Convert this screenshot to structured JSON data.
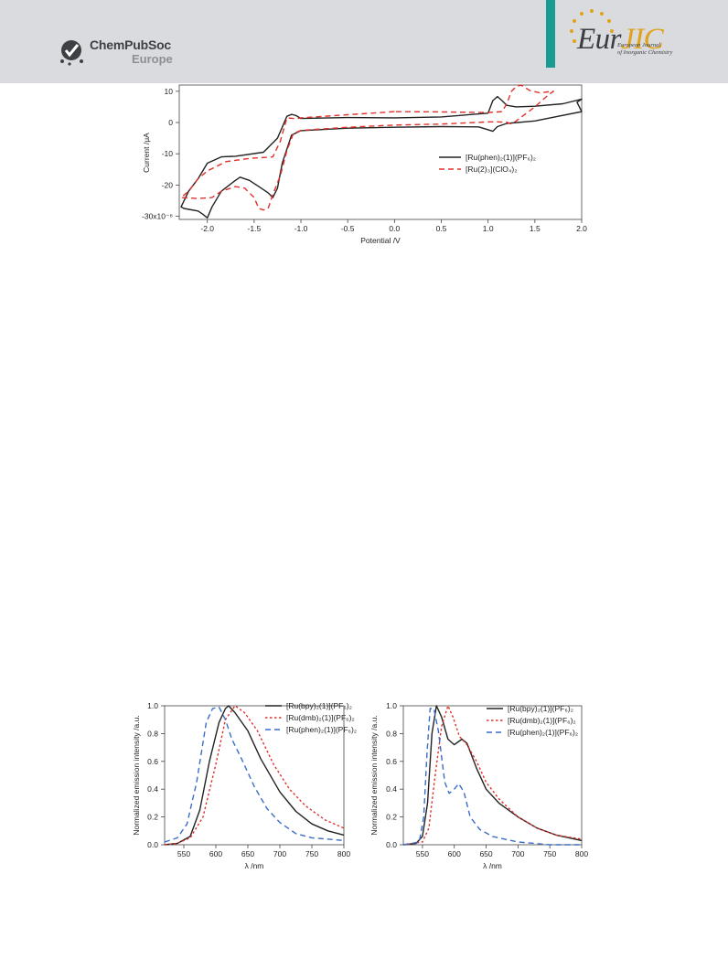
{
  "header": {
    "publisher_name": "ChemPubSoc",
    "publisher_region": "Europe",
    "journal_logo_left": "Eur",
    "journal_logo_right": "JIC",
    "journal_full_line1": "European Journal",
    "journal_full_line2": "of Inorganic Chemistry"
  },
  "colors": {
    "header_band": "#d9dbde",
    "teal_accent": "#1a9b92",
    "series_black": "#222222",
    "series_red": "#e0302a",
    "series_blue": "#3a6cc8",
    "star_gold": "#e2a21a"
  },
  "icons": [
    "chempubsoc-logo-icon",
    "eurjic-star-ring-icon"
  ],
  "chart_data": [
    {
      "type": "line",
      "xlabel": "Potential /V",
      "ylabel": "Current /μA",
      "xlim": [
        -2.3,
        2.0
      ],
      "ylim": [
        -31,
        12
      ],
      "xticks": [
        -2.0,
        -1.5,
        -1.0,
        -0.5,
        0.0,
        0.5,
        1.0,
        1.5,
        2.0
      ],
      "xtick_labels": [
        "-2.0",
        "-1.5",
        "-1.0",
        "-0.5",
        "0.0",
        "0.5",
        "1.0",
        "1.5",
        "2.0"
      ],
      "yticks": [
        10,
        0,
        -10,
        -20,
        -30
      ],
      "ytick_labels": [
        "10",
        "0",
        "-10",
        "-20",
        "-30x10⁻⁶"
      ],
      "grid": false,
      "legend_position": "right",
      "series": [
        {
          "name": "[Ru(phen)₂(1)](PF₆)₂",
          "style": "solid",
          "color": "#222222",
          "points": [
            [
              0.0,
              1.5
            ],
            [
              -0.5,
              1.6
            ],
            [
              -1.0,
              1.3
            ],
            [
              -1.05,
              2.2
            ],
            [
              -1.1,
              2.6
            ],
            [
              -1.15,
              2.0
            ],
            [
              -1.2,
              -1.5
            ],
            [
              -1.25,
              -5
            ],
            [
              -1.4,
              -9.5
            ],
            [
              -1.7,
              -10.8
            ],
            [
              -1.85,
              -11
            ],
            [
              -2.0,
              -13
            ],
            [
              -2.1,
              -18
            ],
            [
              -2.2,
              -22
            ],
            [
              -2.28,
              -27
            ],
            [
              -2.25,
              -27.5
            ],
            [
              -2.1,
              -28.3
            ],
            [
              -2.05,
              -29.3
            ],
            [
              -2.0,
              -30.5
            ],
            [
              -1.95,
              -27
            ],
            [
              -1.85,
              -22
            ],
            [
              -1.7,
              -18.5
            ],
            [
              -1.65,
              -17.5
            ],
            [
              -1.55,
              -18.5
            ],
            [
              -1.45,
              -20.5
            ],
            [
              -1.35,
              -22.5
            ],
            [
              -1.3,
              -24
            ],
            [
              -1.25,
              -21
            ],
            [
              -1.2,
              -13
            ],
            [
              -1.1,
              -4
            ],
            [
              -1.0,
              -2.6
            ],
            [
              -0.5,
              -1.8
            ],
            [
              0.0,
              -1.5
            ],
            [
              0.5,
              -1.3
            ],
            [
              0.9,
              -1.4
            ],
            [
              1.0,
              -2.3
            ],
            [
              1.05,
              -2.8
            ],
            [
              1.1,
              -1.3
            ],
            [
              1.2,
              -0.3
            ],
            [
              1.5,
              0.5
            ],
            [
              2.0,
              3.5
            ],
            [
              1.95,
              6.5
            ],
            [
              2.0,
              7.5
            ],
            [
              1.8,
              6
            ],
            [
              1.5,
              5.2
            ],
            [
              1.3,
              5
            ],
            [
              1.2,
              5.5
            ],
            [
              1.15,
              7
            ],
            [
              1.1,
              8.3
            ],
            [
              1.05,
              7
            ],
            [
              1.0,
              3
            ],
            [
              0.5,
              1.8
            ],
            [
              0.0,
              1.5
            ]
          ]
        },
        {
          "name": "[Ru(2)₃](ClO₄)₂",
          "style": "dashed",
          "color": "#e0302a",
          "points": [
            [
              0.0,
              3.5
            ],
            [
              -0.5,
              2.5
            ],
            [
              -1.0,
              1.5
            ],
            [
              -1.05,
              1.2
            ],
            [
              -1.15,
              1.5
            ],
            [
              -1.22,
              -6
            ],
            [
              -1.3,
              -11
            ],
            [
              -1.55,
              -11.5
            ],
            [
              -1.8,
              -12.5
            ],
            [
              -2.0,
              -15.5
            ],
            [
              -2.1,
              -18
            ],
            [
              -2.2,
              -22
            ],
            [
              -2.28,
              -24
            ],
            [
              -2.1,
              -24.3
            ],
            [
              -1.95,
              -24
            ],
            [
              -1.85,
              -22
            ],
            [
              -1.7,
              -20.5
            ],
            [
              -1.6,
              -21
            ],
            [
              -1.5,
              -24
            ],
            [
              -1.45,
              -27.5
            ],
            [
              -1.4,
              -28
            ],
            [
              -1.35,
              -27.5
            ],
            [
              -1.3,
              -23
            ],
            [
              -1.22,
              -17
            ],
            [
              -1.15,
              -9
            ],
            [
              -1.08,
              -3.5
            ],
            [
              -1.0,
              -2.5
            ],
            [
              -0.5,
              -1.5
            ],
            [
              0.0,
              -0.8
            ],
            [
              0.5,
              -0.5
            ],
            [
              1.0,
              0.2
            ],
            [
              1.1,
              0.2
            ],
            [
              1.2,
              0.1
            ],
            [
              1.25,
              -0.5
            ],
            [
              1.3,
              0.5
            ],
            [
              1.5,
              5
            ],
            [
              1.65,
              9
            ],
            [
              1.7,
              10
            ],
            [
              1.55,
              9.5
            ],
            [
              1.45,
              10.2
            ],
            [
              1.35,
              12
            ],
            [
              1.3,
              11.5
            ],
            [
              1.25,
              10
            ],
            [
              1.2,
              6
            ],
            [
              1.15,
              3.5
            ],
            [
              1.0,
              3.2
            ],
            [
              0.5,
              3.4
            ],
            [
              0.0,
              3.5
            ]
          ]
        }
      ]
    },
    {
      "type": "line",
      "xlabel": "λ /nm",
      "ylabel": "Normalized emission intensity /a.u.",
      "xlim": [
        520,
        800
      ],
      "ylim": [
        0,
        1.0
      ],
      "xticks": [
        550,
        600,
        650,
        700,
        750,
        800
      ],
      "xtick_labels": [
        "550",
        "600",
        "650",
        "700",
        "750",
        "800"
      ],
      "yticks": [
        0.0,
        0.2,
        0.4,
        0.6,
        0.8,
        1.0
      ],
      "ytick_labels": [
        "0.0",
        "0.2",
        "0.4",
        "0.6",
        "0.8",
        "1.0"
      ],
      "grid": false,
      "legend_position": "top-right",
      "series": [
        {
          "name": "[Ru(bpy)₂(1)](PF₆)₂",
          "style": "solid",
          "color": "#222222",
          "points": [
            [
              520,
              0.0
            ],
            [
              540,
              0.01
            ],
            [
              560,
              0.06
            ],
            [
              575,
              0.25
            ],
            [
              590,
              0.6
            ],
            [
              605,
              0.88
            ],
            [
              615,
              0.98
            ],
            [
              620,
              1.0
            ],
            [
              630,
              0.95
            ],
            [
              650,
              0.82
            ],
            [
              670,
              0.62
            ],
            [
              700,
              0.38
            ],
            [
              725,
              0.24
            ],
            [
              750,
              0.15
            ],
            [
              775,
              0.1
            ],
            [
              800,
              0.07
            ]
          ]
        },
        {
          "name": "[Ru(dmb)₂(1)](PF₆)₂",
          "style": "dotted",
          "color": "#e0302a",
          "points": [
            [
              520,
              0.0
            ],
            [
              540,
              0.01
            ],
            [
              560,
              0.05
            ],
            [
              580,
              0.2
            ],
            [
              600,
              0.58
            ],
            [
              615,
              0.9
            ],
            [
              630,
              1.0
            ],
            [
              645,
              0.95
            ],
            [
              665,
              0.82
            ],
            [
              690,
              0.58
            ],
            [
              715,
              0.4
            ],
            [
              740,
              0.28
            ],
            [
              770,
              0.18
            ],
            [
              800,
              0.12
            ]
          ]
        },
        {
          "name": "[Ru(phen)₂(1)](PF₆)₂",
          "style": "dashed",
          "color": "#3a6cc8",
          "points": [
            [
              520,
              0.02
            ],
            [
              540,
              0.05
            ],
            [
              555,
              0.15
            ],
            [
              570,
              0.45
            ],
            [
              585,
              0.88
            ],
            [
              595,
              0.98
            ],
            [
              605,
              0.99
            ],
            [
              615,
              0.9
            ],
            [
              625,
              0.76
            ],
            [
              640,
              0.62
            ],
            [
              660,
              0.42
            ],
            [
              680,
              0.26
            ],
            [
              700,
              0.16
            ],
            [
              725,
              0.08
            ],
            [
              750,
              0.05
            ],
            [
              800,
              0.03
            ]
          ]
        }
      ]
    },
    {
      "type": "line",
      "xlabel": "λ /nm",
      "ylabel": "Normalized emission intensity /a.u.",
      "xlim": [
        520,
        800
      ],
      "ylim": [
        0,
        1.0
      ],
      "xticks": [
        550,
        600,
        650,
        700,
        750,
        800
      ],
      "xtick_labels": [
        "550",
        "600",
        "650",
        "700",
        "750",
        "800"
      ],
      "yticks": [
        0.0,
        0.2,
        0.4,
        0.6,
        0.8,
        1.0
      ],
      "ytick_labels": [
        "0.0",
        "0.2",
        "0.4",
        "0.6",
        "0.8",
        "1.0"
      ],
      "grid": false,
      "legend_position": "top-right",
      "series": [
        {
          "name": "[Ru(bpy)₂(1)](PF₆)₂",
          "style": "solid",
          "color": "#222222",
          "points": [
            [
              520,
              0.0
            ],
            [
              540,
              0.01
            ],
            [
              550,
              0.06
            ],
            [
              558,
              0.3
            ],
            [
              565,
              0.8
            ],
            [
              572,
              1.0
            ],
            [
              580,
              0.92
            ],
            [
              590,
              0.76
            ],
            [
              600,
              0.72
            ],
            [
              612,
              0.76
            ],
            [
              620,
              0.73
            ],
            [
              635,
              0.55
            ],
            [
              650,
              0.4
            ],
            [
              670,
              0.3
            ],
            [
              700,
              0.2
            ],
            [
              730,
              0.12
            ],
            [
              760,
              0.07
            ],
            [
              800,
              0.03
            ]
          ]
        },
        {
          "name": "[Ru(dmb)₂(1)](PF₆)₂",
          "style": "dotted",
          "color": "#e0302a",
          "points": [
            [
              520,
              0.0
            ],
            [
              550,
              0.02
            ],
            [
              560,
              0.12
            ],
            [
              570,
              0.5
            ],
            [
              580,
              0.85
            ],
            [
              590,
              1.0
            ],
            [
              598,
              0.92
            ],
            [
              608,
              0.78
            ],
            [
              620,
              0.72
            ],
            [
              635,
              0.6
            ],
            [
              650,
              0.45
            ],
            [
              670,
              0.33
            ],
            [
              700,
              0.2
            ],
            [
              730,
              0.12
            ],
            [
              760,
              0.07
            ],
            [
              800,
              0.04
            ]
          ]
        },
        {
          "name": "[Ru(phen)₂(1)](PF₆)₂",
          "style": "dashed",
          "color": "#3a6cc8",
          "points": [
            [
              520,
              0.0
            ],
            [
              545,
              0.02
            ],
            [
              552,
              0.2
            ],
            [
              557,
              0.65
            ],
            [
              562,
              0.98
            ],
            [
              568,
              0.98
            ],
            [
              575,
              0.82
            ],
            [
              585,
              0.45
            ],
            [
              592,
              0.37
            ],
            [
              600,
              0.4
            ],
            [
              607,
              0.44
            ],
            [
              615,
              0.38
            ],
            [
              625,
              0.2
            ],
            [
              640,
              0.11
            ],
            [
              660,
              0.06
            ],
            [
              700,
              0.02
            ],
            [
              750,
              0.0
            ],
            [
              800,
              0.0
            ]
          ]
        }
      ]
    }
  ]
}
